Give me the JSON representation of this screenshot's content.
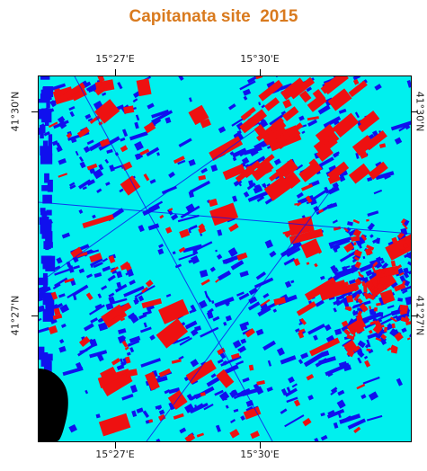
{
  "title": {
    "text": "Capitanata site  2015",
    "color": "#d97a1e"
  },
  "map": {
    "classes": [
      {
        "name": "class-background",
        "color": "#00f0ee"
      },
      {
        "name": "class-red",
        "color": "#ee1111"
      },
      {
        "name": "class-blue",
        "color": "#1010ee"
      },
      {
        "name": "class-masked",
        "color": "#000000"
      }
    ],
    "grid_labels": {
      "top": [
        "15°27'E",
        "15°30'E"
      ],
      "bottom": [
        "15°27'E",
        "15°30'E"
      ],
      "left": [
        "41°30'N",
        "41°27'N"
      ],
      "right": [
        "41°30'N",
        "41°27'N"
      ]
    }
  }
}
